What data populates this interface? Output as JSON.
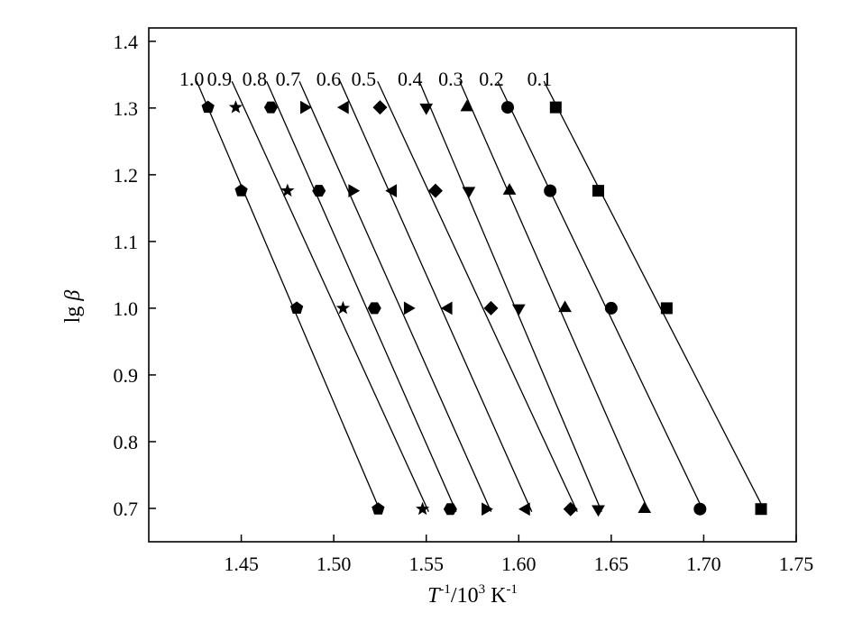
{
  "chart_data": {
    "type": "scatter",
    "title": "",
    "xlabel": {
      "base": "T",
      "sup1": "-1",
      "mid": "/10",
      "sup2": "3",
      "unit": " K",
      "sup3": "-1"
    },
    "ylabel": {
      "main": "lg ",
      "symbol": "β"
    },
    "xlim": [
      1.4,
      1.75
    ],
    "ylim": [
      0.65,
      1.42
    ],
    "x_ticks": [
      1.45,
      1.5,
      1.55,
      1.6,
      1.65,
      1.7,
      1.75
    ],
    "x_tick_labels": [
      "1.45",
      "1.50",
      "1.55",
      "1.60",
      "1.65",
      "1.70",
      "1.75"
    ],
    "y_ticks": [
      0.7,
      0.8,
      0.9,
      1.0,
      1.1,
      1.2,
      1.3,
      1.4
    ],
    "y_tick_labels": [
      "0.7",
      "0.8",
      "0.9",
      "1.0",
      "1.1",
      "1.2",
      "1.3",
      "1.4"
    ],
    "grid": false,
    "y": [
      1.301,
      1.176,
      1.0,
      0.699
    ],
    "series": [
      {
        "name": "1.0",
        "marker": "pentagon",
        "x": [
          1.432,
          1.45,
          1.48,
          1.524
        ]
      },
      {
        "name": "0.9",
        "marker": "star",
        "x": [
          1.447,
          1.475,
          1.505,
          1.548
        ]
      },
      {
        "name": "0.8",
        "marker": "hexagon",
        "x": [
          1.466,
          1.492,
          1.522,
          1.563
        ]
      },
      {
        "name": "0.7",
        "marker": "triangle-right",
        "x": [
          1.484,
          1.51,
          1.54,
          1.582
        ]
      },
      {
        "name": "0.6",
        "marker": "triangle-left",
        "x": [
          1.506,
          1.532,
          1.562,
          1.604
        ]
      },
      {
        "name": "0.5",
        "marker": "diamond",
        "x": [
          1.525,
          1.555,
          1.585,
          1.628
        ]
      },
      {
        "name": "0.4",
        "marker": "triangle-down",
        "x": [
          1.55,
          1.573,
          1.6,
          1.643
        ]
      },
      {
        "name": "0.3",
        "marker": "triangle-up",
        "x": [
          1.572,
          1.595,
          1.625,
          1.668
        ]
      },
      {
        "name": "0.2",
        "marker": "circle",
        "x": [
          1.594,
          1.617,
          1.65,
          1.698
        ]
      },
      {
        "name": "0.1",
        "marker": "square",
        "x": [
          1.62,
          1.643,
          1.68,
          1.731
        ]
      }
    ]
  }
}
